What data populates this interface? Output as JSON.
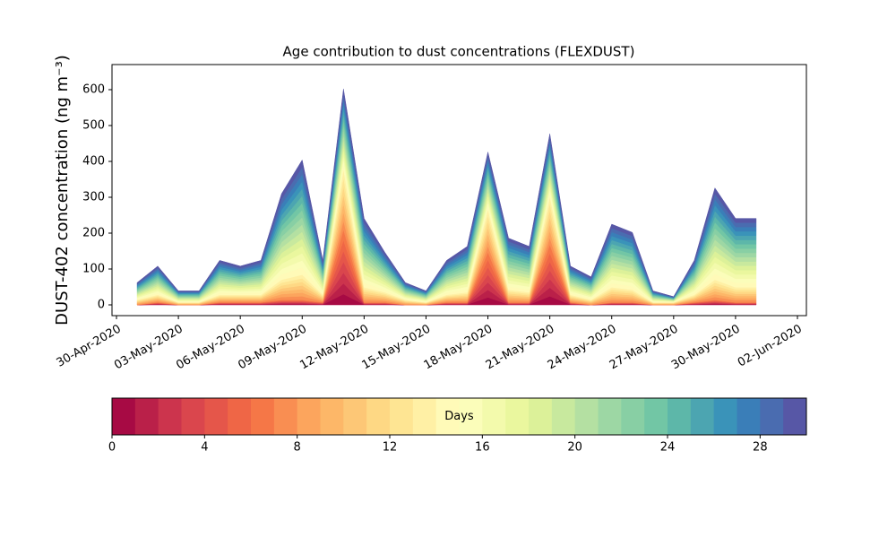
{
  "chart_data": {
    "type": "stacked_area",
    "title": "Age contribution to dust concentrations (FLEXDUST)",
    "y_label": "DUST-402 concentration (ng m⁻³)",
    "x": [
      "2020-05-01",
      "2020-05-02",
      "2020-05-03",
      "2020-05-04",
      "2020-05-05",
      "2020-05-06",
      "2020-05-07",
      "2020-05-08",
      "2020-05-09",
      "2020-05-10",
      "2020-05-11",
      "2020-05-12",
      "2020-05-13",
      "2020-05-14",
      "2020-05-15",
      "2020-05-16",
      "2020-05-17",
      "2020-05-18",
      "2020-05-19",
      "2020-05-20",
      "2020-05-21",
      "2020-05-22",
      "2020-05-23",
      "2020-05-24",
      "2020-05-25",
      "2020-05-26",
      "2020-05-27",
      "2020-05-28",
      "2020-05-29",
      "2020-05-30",
      "2020-05-31"
    ],
    "xlim": [
      "2020-04-30",
      "2020-06-02"
    ],
    "xticks": [
      {
        "value": "2020-04-30",
        "label": "30-Apr-2020"
      },
      {
        "value": "2020-05-03",
        "label": "03-May-2020"
      },
      {
        "value": "2020-05-06",
        "label": "06-May-2020"
      },
      {
        "value": "2020-05-09",
        "label": "09-May-2020"
      },
      {
        "value": "2020-05-12",
        "label": "12-May-2020"
      },
      {
        "value": "2020-05-15",
        "label": "15-May-2020"
      },
      {
        "value": "2020-05-18",
        "label": "18-May-2020"
      },
      {
        "value": "2020-05-21",
        "label": "21-May-2020"
      },
      {
        "value": "2020-05-24",
        "label": "24-May-2020"
      },
      {
        "value": "2020-05-27",
        "label": "27-May-2020"
      },
      {
        "value": "2020-05-30",
        "label": "30-May-2020"
      },
      {
        "value": "2020-06-02",
        "label": "02-Jun-2020"
      }
    ],
    "ylim": [
      -30,
      670
    ],
    "yticks": [
      0,
      100,
      200,
      300,
      400,
      500,
      600
    ],
    "series": [
      {
        "color": "#a70a44",
        "values": [
          0,
          1,
          0,
          0,
          1,
          1,
          1,
          2,
          2,
          1,
          30,
          1,
          1,
          0,
          0,
          1,
          1,
          21,
          1,
          1,
          24,
          1,
          0,
          1,
          1,
          0,
          0,
          1,
          2,
          1,
          1
        ]
      },
      {
        "color": "#ba2049",
        "values": [
          0,
          1,
          0,
          0,
          1,
          1,
          1,
          2,
          2,
          1,
          30,
          1,
          1,
          0,
          0,
          1,
          1,
          21,
          1,
          1,
          24,
          1,
          0,
          1,
          1,
          0,
          0,
          1,
          2,
          1,
          1
        ]
      },
      {
        "color": "#cc344d",
        "values": [
          0,
          1,
          0,
          0,
          1,
          1,
          1,
          2,
          2,
          1,
          30,
          1,
          1,
          0,
          0,
          1,
          1,
          21,
          1,
          1,
          24,
          1,
          0,
          1,
          1,
          0,
          0,
          1,
          2,
          1,
          1
        ]
      },
      {
        "color": "#da464d",
        "values": [
          0,
          1,
          0,
          0,
          1,
          1,
          1,
          2,
          2,
          1,
          30,
          1,
          1,
          0,
          0,
          1,
          1,
          21,
          1,
          1,
          24,
          1,
          0,
          1,
          1,
          0,
          0,
          1,
          2,
          1,
          1
        ]
      },
      {
        "color": "#e5564a",
        "values": [
          0,
          1,
          0,
          0,
          1,
          1,
          1,
          2,
          2,
          1,
          30,
          1,
          1,
          0,
          0,
          1,
          1,
          21,
          1,
          1,
          24,
          1,
          0,
          1,
          1,
          0,
          0,
          1,
          2,
          1,
          1
        ]
      },
      {
        "color": "#ef6646",
        "values": [
          0,
          1,
          0,
          0,
          1,
          1,
          1,
          2,
          2,
          1,
          30,
          1,
          1,
          0,
          0,
          1,
          1,
          21,
          1,
          1,
          24,
          1,
          0,
          1,
          1,
          0,
          0,
          1,
          2,
          1,
          1
        ]
      },
      {
        "color": "#f57747",
        "values": [
          0,
          1,
          0,
          0,
          1,
          1,
          1,
          2,
          2,
          1,
          30,
          1,
          1,
          0,
          0,
          1,
          1,
          21,
          1,
          1,
          24,
          1,
          0,
          1,
          1,
          0,
          0,
          1,
          2,
          1,
          1
        ]
      },
      {
        "color": "#f98e52",
        "values": [
          2,
          3,
          1,
          1,
          3,
          3,
          3,
          8,
          10,
          3,
          24,
          6,
          4,
          2,
          1,
          3,
          4,
          17,
          5,
          4,
          19,
          3,
          2,
          6,
          5,
          1,
          1,
          3,
          8,
          6,
          6
        ]
      },
      {
        "color": "#fca55d",
        "values": [
          2,
          3,
          1,
          1,
          3,
          3,
          3,
          8,
          10,
          3,
          24,
          6,
          4,
          2,
          1,
          3,
          4,
          17,
          5,
          4,
          19,
          3,
          2,
          6,
          5,
          1,
          1,
          3,
          8,
          6,
          6
        ]
      },
      {
        "color": "#fdb768",
        "values": [
          2,
          3,
          1,
          1,
          3,
          3,
          3,
          8,
          10,
          3,
          24,
          6,
          4,
          2,
          1,
          3,
          4,
          17,
          5,
          4,
          19,
          3,
          2,
          6,
          5,
          1,
          1,
          3,
          8,
          6,
          6
        ]
      },
      {
        "color": "#fdc776",
        "values": [
          2,
          3,
          1,
          1,
          3,
          3,
          3,
          8,
          10,
          3,
          24,
          6,
          4,
          2,
          1,
          3,
          4,
          17,
          5,
          4,
          19,
          3,
          2,
          6,
          5,
          1,
          1,
          3,
          8,
          6,
          6
        ]
      },
      {
        "color": "#fed884",
        "values": [
          2,
          3,
          1,
          1,
          3,
          3,
          3,
          8,
          10,
          3,
          24,
          6,
          4,
          2,
          1,
          3,
          4,
          17,
          5,
          4,
          19,
          3,
          2,
          6,
          5,
          1,
          1,
          3,
          8,
          6,
          6
        ]
      },
      {
        "color": "#fee593",
        "values": [
          2,
          3,
          1,
          1,
          3,
          3,
          3,
          8,
          10,
          3,
          24,
          6,
          4,
          2,
          1,
          3,
          4,
          17,
          5,
          4,
          19,
          3,
          2,
          6,
          5,
          1,
          1,
          3,
          8,
          6,
          6
        ]
      },
      {
        "color": "#fff0a5",
        "values": [
          2,
          3,
          1,
          1,
          3,
          3,
          3,
          8,
          10,
          3,
          24,
          6,
          4,
          2,
          1,
          3,
          4,
          17,
          5,
          4,
          19,
          3,
          2,
          6,
          5,
          1,
          1,
          3,
          8,
          6,
          6
        ]
      },
      {
        "color": "#fffab8",
        "values": [
          3,
          5,
          2,
          2,
          6,
          5,
          6,
          15,
          20,
          6,
          14,
          12,
          7,
          3,
          2,
          6,
          8,
          10,
          9,
          8,
          11,
          5,
          4,
          11,
          10,
          2,
          1,
          6,
          16,
          12,
          12
        ]
      },
      {
        "color": "#fbfdba",
        "values": [
          3,
          5,
          2,
          2,
          6,
          5,
          6,
          15,
          20,
          6,
          14,
          12,
          7,
          3,
          2,
          6,
          8,
          10,
          9,
          8,
          11,
          5,
          4,
          11,
          10,
          2,
          1,
          6,
          16,
          12,
          12
        ]
      },
      {
        "color": "#f3faac",
        "values": [
          3,
          5,
          2,
          2,
          6,
          5,
          6,
          15,
          20,
          6,
          14,
          12,
          7,
          3,
          2,
          6,
          8,
          10,
          9,
          8,
          11,
          5,
          4,
          11,
          10,
          2,
          1,
          6,
          16,
          12,
          12
        ]
      },
      {
        "color": "#eaf79e",
        "values": [
          3,
          5,
          2,
          2,
          6,
          5,
          6,
          15,
          20,
          6,
          14,
          12,
          7,
          3,
          2,
          6,
          8,
          10,
          9,
          8,
          11,
          5,
          4,
          11,
          10,
          2,
          1,
          6,
          16,
          12,
          12
        ]
      },
      {
        "color": "#dcf199",
        "values": [
          3,
          5,
          2,
          2,
          6,
          5,
          6,
          15,
          20,
          6,
          14,
          12,
          7,
          3,
          2,
          6,
          8,
          10,
          9,
          8,
          11,
          5,
          4,
          11,
          10,
          2,
          1,
          6,
          16,
          12,
          12
        ]
      },
      {
        "color": "#c8e99e",
        "values": [
          3,
          5,
          2,
          2,
          6,
          5,
          6,
          15,
          20,
          6,
          14,
          12,
          7,
          3,
          2,
          6,
          8,
          10,
          9,
          8,
          11,
          5,
          4,
          11,
          10,
          2,
          1,
          6,
          16,
          12,
          12
        ]
      },
      {
        "color": "#b4e0a2",
        "values": [
          3,
          5,
          2,
          2,
          6,
          5,
          6,
          15,
          20,
          6,
          14,
          12,
          7,
          3,
          2,
          6,
          8,
          10,
          9,
          8,
          11,
          5,
          4,
          11,
          10,
          2,
          1,
          6,
          16,
          12,
          12
        ]
      },
      {
        "color": "#9dd7a4",
        "values": [
          3,
          5,
          2,
          2,
          6,
          5,
          6,
          15,
          20,
          6,
          14,
          12,
          7,
          3,
          2,
          6,
          8,
          10,
          9,
          8,
          11,
          5,
          4,
          11,
          10,
          2,
          1,
          6,
          16,
          12,
          12
        ]
      },
      {
        "color": "#88cfa4",
        "values": [
          3,
          5,
          2,
          2,
          6,
          5,
          6,
          15,
          20,
          6,
          14,
          12,
          7,
          3,
          2,
          6,
          8,
          10,
          9,
          8,
          11,
          5,
          4,
          11,
          10,
          2,
          1,
          6,
          16,
          12,
          12
        ]
      },
      {
        "color": "#72c6a5",
        "values": [
          3,
          5,
          2,
          2,
          6,
          5,
          6,
          15,
          20,
          6,
          14,
          12,
          7,
          3,
          2,
          6,
          8,
          10,
          9,
          8,
          11,
          5,
          4,
          11,
          10,
          2,
          1,
          6,
          16,
          12,
          12
        ]
      },
      {
        "color": "#5db7a9",
        "values": [
          3,
          5,
          2,
          2,
          6,
          5,
          6,
          15,
          20,
          6,
          14,
          12,
          7,
          3,
          2,
          6,
          8,
          10,
          9,
          8,
          11,
          5,
          4,
          11,
          10,
          2,
          1,
          6,
          16,
          12,
          12
        ]
      },
      {
        "color": "#4ca5b1",
        "values": [
          3,
          5,
          2,
          2,
          6,
          5,
          6,
          15,
          20,
          6,
          14,
          12,
          7,
          3,
          2,
          6,
          8,
          10,
          9,
          8,
          11,
          5,
          4,
          11,
          10,
          2,
          1,
          6,
          16,
          12,
          12
        ]
      },
      {
        "color": "#3a93b9",
        "values": [
          3,
          5,
          2,
          2,
          6,
          5,
          6,
          15,
          20,
          6,
          14,
          12,
          7,
          3,
          2,
          6,
          8,
          10,
          9,
          8,
          11,
          5,
          4,
          11,
          10,
          2,
          1,
          6,
          16,
          12,
          12
        ]
      },
      {
        "color": "#3a7eb8",
        "values": [
          3,
          5,
          2,
          2,
          6,
          5,
          6,
          15,
          20,
          6,
          14,
          12,
          7,
          3,
          2,
          6,
          8,
          10,
          9,
          8,
          11,
          5,
          4,
          11,
          10,
          2,
          1,
          6,
          16,
          12,
          12
        ]
      },
      {
        "color": "#4a6cb0",
        "values": [
          3,
          5,
          2,
          2,
          6,
          5,
          6,
          15,
          20,
          6,
          14,
          12,
          7,
          3,
          2,
          6,
          8,
          10,
          9,
          8,
          11,
          5,
          4,
          11,
          10,
          2,
          1,
          6,
          16,
          12,
          12
        ]
      },
      {
        "color": "#5757a6",
        "values": [
          3,
          5,
          2,
          2,
          6,
          5,
          6,
          15,
          20,
          6,
          14,
          12,
          7,
          3,
          2,
          6,
          8,
          10,
          9,
          8,
          11,
          5,
          4,
          11,
          10,
          2,
          1,
          6,
          16,
          12,
          12
        ]
      }
    ],
    "colorbar": {
      "label": "Days",
      "clim": [
        0,
        30
      ],
      "ticks": [
        0,
        4,
        8,
        12,
        16,
        20,
        24,
        28
      ]
    }
  }
}
